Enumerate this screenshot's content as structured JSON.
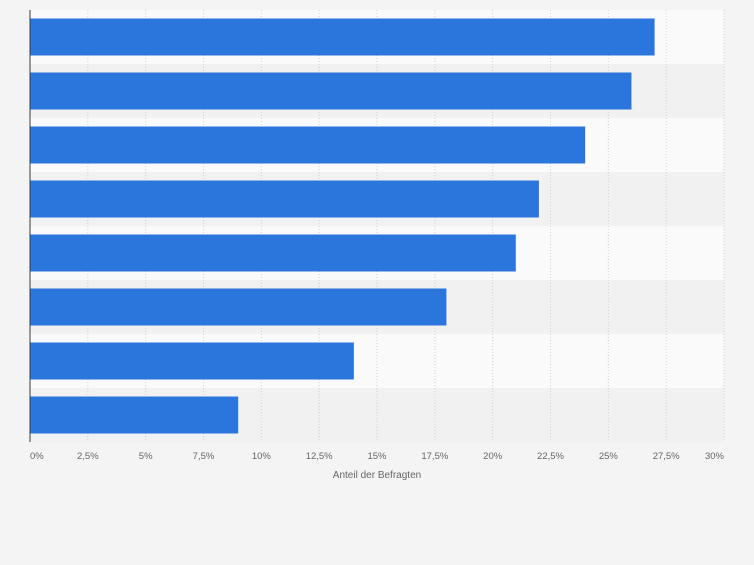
{
  "chart_data": {
    "type": "bar",
    "orientation": "horizontal",
    "categories": [
      "",
      "",
      "",
      "",
      "",
      "",
      "",
      ""
    ],
    "values": [
      27,
      26,
      24,
      22,
      21,
      18,
      14,
      9
    ],
    "xlabel": "Anteil der Befragten",
    "ylabel": "",
    "xlim": [
      0,
      30
    ],
    "ticks": [
      0,
      2.5,
      5,
      7.5,
      10,
      12.5,
      15,
      17.5,
      20,
      22.5,
      25,
      27.5,
      30
    ],
    "tick_labels": [
      "0%",
      "2,5%",
      "5%",
      "7,5%",
      "10%",
      "12,5%",
      "15%",
      "17,5%",
      "20%",
      "22,5%",
      "25%",
      "27,5%",
      "30%"
    ],
    "grid": true,
    "colors": {
      "bar": "#2a76dd",
      "band_light": "#fafafa",
      "band_dark": "#f1f1f1",
      "grid": "#d0d0d0",
      "axis": "#3a3a3a",
      "text": "#666666"
    }
  }
}
